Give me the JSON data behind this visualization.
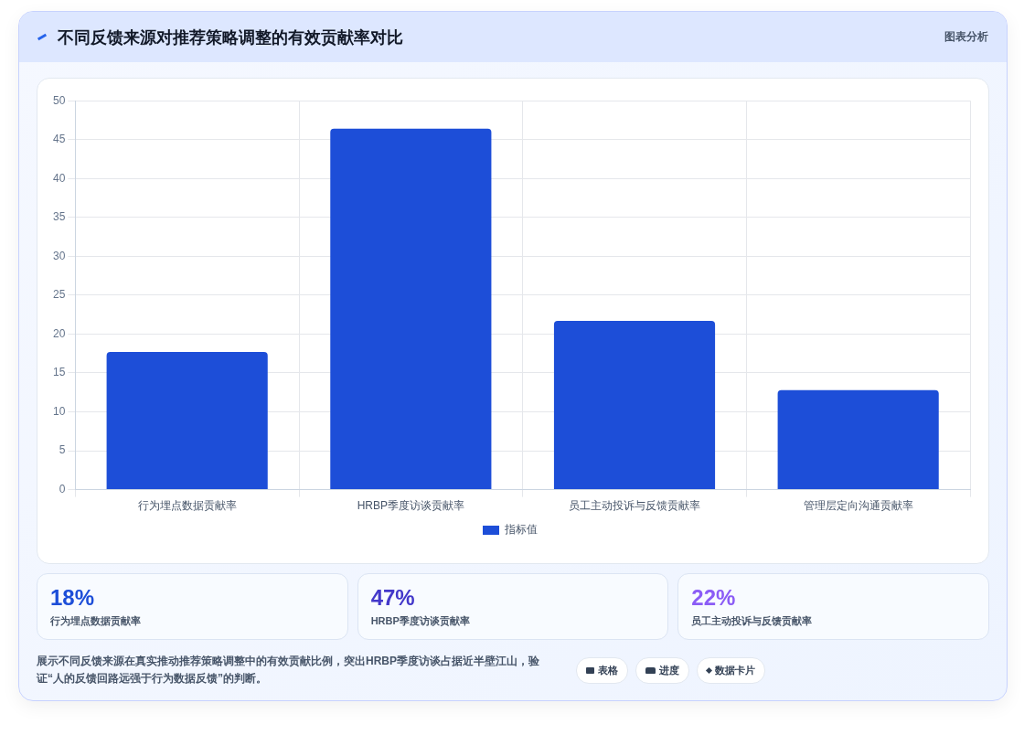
{
  "chart_data": [
    {
      "type": "bar",
      "title": "不同反馈来源对推荐策略调整的有效贡献率对比",
      "categories": [
        "行为埋点数据贡献率",
        "HRBP季度访谈贡献率",
        "员工主动投诉与反馈贡献率",
        "管理层定向沟通贡献率"
      ],
      "series": [
        {
          "name": "指标值",
          "color": "#1d4ed8",
          "values": [
            17.7,
            46.4,
            21.7,
            12.8
          ]
        }
      ],
      "ylim": [
        0,
        50
      ],
      "yticks": [
        0,
        5,
        10,
        15,
        20,
        25,
        30,
        35,
        40,
        45,
        50
      ],
      "grid": true,
      "legend": "bottom",
      "annotations": [
        "图表分析",
        "展示不同反馈来源在真实推动推荐策略调整中的有效贡献比例，突出HRBP季度访谈占据近半壁江山，验证“人的反馈回路远强于行为数据反馈”的判断。",
        "表格",
        "进度",
        "数据卡片"
      ]
    },
    {
      "type": "other",
      "annotations": [
        "18%",
        "行为埋点数据贡献率",
        "47%",
        "HRBP季度访谈贡献率",
        "22%",
        "员工主动投诉与反馈贡献率"
      ]
    }
  ]
}
